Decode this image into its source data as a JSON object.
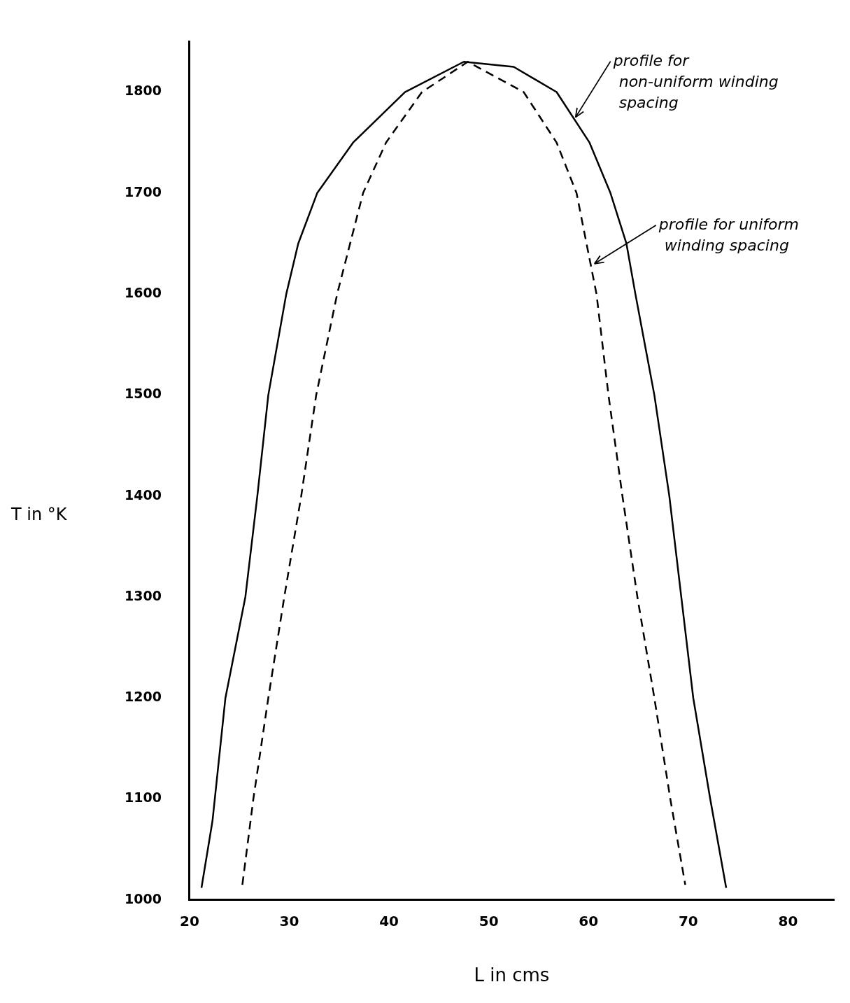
{
  "chart_data": {
    "type": "line",
    "xlabel": "L in cms",
    "ylabel": "T in °K",
    "xlim": [
      20,
      84.6
    ],
    "ylim": [
      1000,
      1850
    ],
    "xticks": [
      20,
      30,
      40,
      50,
      60,
      70,
      80
    ],
    "yticks": [
      1000,
      1100,
      1200,
      1300,
      1400,
      1500,
      1600,
      1700,
      1800
    ],
    "grid": false,
    "legend": false,
    "marker": "none",
    "series": [
      {
        "color": "#000000",
        "line_style": "solid",
        "x": [
          21.2,
          22.3,
          23.6,
          25.6,
          26.8,
          27.9,
          29.7,
          30.9,
          32.8,
          36.4,
          41.6,
          47.5,
          52.5,
          56.8,
          60.1,
          62.2,
          63.8,
          64.7,
          66.6,
          68.1,
          69.3,
          70.5,
          72.2,
          73.8
        ],
        "values": [
          1012,
          1078,
          1200,
          1300,
          1400,
          1500,
          1600,
          1650,
          1700,
          1750,
          1800,
          1830,
          1825,
          1800,
          1750,
          1700,
          1650,
          1600,
          1500,
          1400,
          1300,
          1200,
          1100,
          1012
        ]
      },
      {
        "color": "#000000",
        "line_style": "dashed",
        "x": [
          25.3,
          26.4,
          27.9,
          29.5,
          31.2,
          32.7,
          34.8,
          37.4,
          39.7,
          43.3,
          47.9,
          53.5,
          56.8,
          58.8,
          60.8,
          62.0,
          63.4,
          64.9,
          66.6,
          68.2,
          69.7
        ],
        "values": [
          1015,
          1100,
          1200,
          1300,
          1400,
          1500,
          1600,
          1700,
          1750,
          1800,
          1830,
          1800,
          1750,
          1700,
          1600,
          1500,
          1400,
          1300,
          1200,
          1100,
          1015
        ]
      }
    ],
    "annotations": [
      {
        "text": "profile for non-uniform winding spacing",
        "x": 58.7,
        "y": 1775
      },
      {
        "text": "profile for uniform winding spacing",
        "x": 60.6,
        "y": 1630
      }
    ]
  }
}
